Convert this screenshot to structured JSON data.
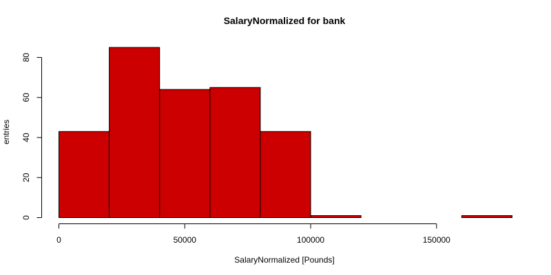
{
  "chart_data": {
    "type": "bar",
    "title": "SalaryNormalized for bank",
    "xlabel": "SalaryNormalized [Pounds]",
    "ylabel": "entries",
    "bins": [
      {
        "x0": 0,
        "x1": 20000,
        "count": 43
      },
      {
        "x0": 20000,
        "x1": 40000,
        "count": 85
      },
      {
        "x0": 40000,
        "x1": 60000,
        "count": 64
      },
      {
        "x0": 60000,
        "x1": 80000,
        "count": 65
      },
      {
        "x0": 80000,
        "x1": 100000,
        "count": 43
      },
      {
        "x0": 100000,
        "x1": 120000,
        "count": 1
      },
      {
        "x0": 120000,
        "x1": 140000,
        "count": 0
      },
      {
        "x0": 140000,
        "x1": 160000,
        "count": 0
      },
      {
        "x0": 160000,
        "x1": 180000,
        "count": 1
      }
    ],
    "xticks": [
      0,
      50000,
      100000,
      150000
    ],
    "xtick_labels": [
      "0",
      "50000",
      "100000",
      "150000"
    ],
    "yticks": [
      0,
      20,
      40,
      60,
      80
    ],
    "ytick_labels": [
      "0",
      "20",
      "40",
      "60",
      "80"
    ],
    "xlim": [
      0,
      180000
    ],
    "ylim": [
      0,
      85
    ],
    "bar_color": "#CC0000",
    "grid": false,
    "legend": "none"
  }
}
